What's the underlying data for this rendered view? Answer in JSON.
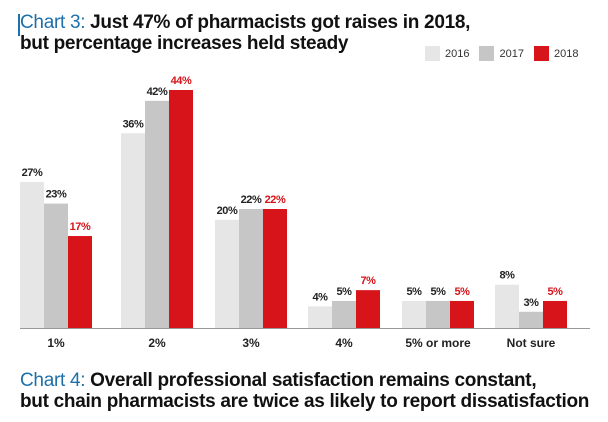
{
  "title": {
    "chart_label": "Chart 3:",
    "line1_rest": " Just 47% of pharmacists got raises in 2018,",
    "line2": "but percentage increases held steady"
  },
  "next_title": {
    "chart_label": "Chart 4:",
    "line1_rest": " Overall professional satisfaction remains constant,",
    "line2": "but chain pharmacists are twice as likely to report dissatisfaction"
  },
  "colors": {
    "series_2016": "#e6e6e6",
    "series_2017": "#c6c6c6",
    "series_2018": "#d7141a",
    "label_2018": "#d7141a",
    "label_other": "#222222",
    "accent": "#1f6fa8"
  },
  "chart_data": {
    "type": "bar",
    "title": "Just 47% of pharmacists got raises in 2018, but percentage increases held steady",
    "xlabel": "",
    "ylabel": "",
    "ylim": [
      0,
      44
    ],
    "legend_position": "top-right",
    "categories": [
      "1%",
      "2%",
      "3%",
      "4%",
      "5% or more",
      "Not sure"
    ],
    "series": [
      {
        "name": "2016",
        "values": [
          27,
          36,
          20,
          4,
          5,
          8
        ],
        "labels": [
          "27%",
          "36%",
          "20%",
          "4%",
          "5%",
          "8%"
        ]
      },
      {
        "name": "2017",
        "values": [
          23,
          42,
          22,
          5,
          5,
          3
        ],
        "labels": [
          "23%",
          "42%",
          "22%",
          "5%",
          "5%",
          "3%"
        ]
      },
      {
        "name": "2018",
        "values": [
          17,
          44,
          22,
          7,
          5,
          5
        ],
        "labels": [
          "17%",
          "44%",
          "22%",
          "7%",
          "5%",
          "5%"
        ]
      }
    ]
  }
}
